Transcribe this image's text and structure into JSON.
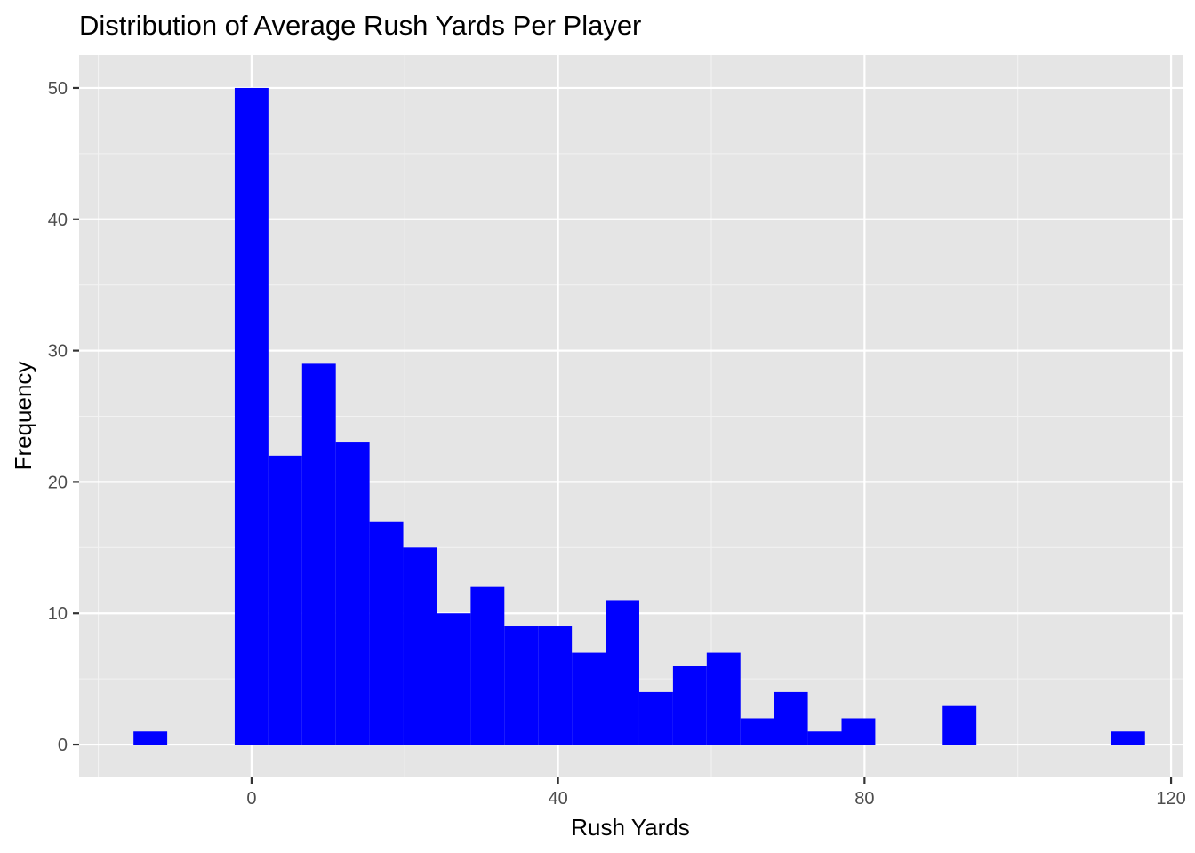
{
  "chart_data": {
    "type": "histogram",
    "title": "Distribution of Average Rush Yards Per Player",
    "xlabel": "Rush Yards",
    "ylabel": "Frequency",
    "bar_color": "#0000ff",
    "panel_background": "#e5e5e5",
    "grid": true,
    "xlim": [
      -22.5,
      121.5
    ],
    "ylim": [
      -2.5,
      52.5
    ],
    "x_ticks": [
      0,
      40,
      80,
      120
    ],
    "y_ticks": [
      0,
      10,
      20,
      30,
      40,
      50
    ],
    "bins": [
      {
        "x0": -15.4,
        "x1": -11.0,
        "count": 1
      },
      {
        "x0": -2.2,
        "x1": 2.2,
        "count": 50
      },
      {
        "x0": 2.2,
        "x1": 6.6,
        "count": 22
      },
      {
        "x0": 6.6,
        "x1": 11.0,
        "count": 29
      },
      {
        "x0": 11.0,
        "x1": 15.4,
        "count": 23
      },
      {
        "x0": 15.4,
        "x1": 19.8,
        "count": 17
      },
      {
        "x0": 19.8,
        "x1": 24.2,
        "count": 15
      },
      {
        "x0": 24.2,
        "x1": 28.6,
        "count": 10
      },
      {
        "x0": 28.6,
        "x1": 33.0,
        "count": 12
      },
      {
        "x0": 33.0,
        "x1": 37.4,
        "count": 9
      },
      {
        "x0": 37.4,
        "x1": 41.8,
        "count": 9
      },
      {
        "x0": 41.8,
        "x1": 46.2,
        "count": 7
      },
      {
        "x0": 46.2,
        "x1": 50.6,
        "count": 11
      },
      {
        "x0": 50.6,
        "x1": 55.0,
        "count": 4
      },
      {
        "x0": 55.0,
        "x1": 59.4,
        "count": 6
      },
      {
        "x0": 59.4,
        "x1": 63.8,
        "count": 7
      },
      {
        "x0": 63.8,
        "x1": 68.2,
        "count": 2
      },
      {
        "x0": 68.2,
        "x1": 72.6,
        "count": 4
      },
      {
        "x0": 72.6,
        "x1": 77.0,
        "count": 1
      },
      {
        "x0": 77.0,
        "x1": 81.4,
        "count": 2
      },
      {
        "x0": 90.2,
        "x1": 94.6,
        "count": 3
      },
      {
        "x0": 112.2,
        "x1": 116.6,
        "count": 1
      }
    ]
  }
}
